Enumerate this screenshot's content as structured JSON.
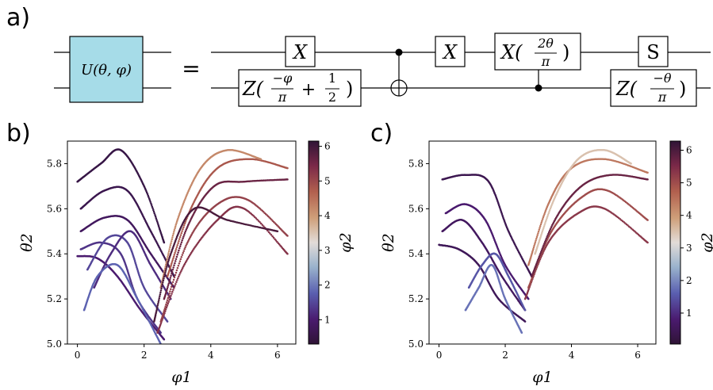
{
  "panels": {
    "a": "a)",
    "b": "b)",
    "c": "c)"
  },
  "circuit": {
    "unitary_label": "U(θ, φ)",
    "equals": "=",
    "unitary_fill": "#a6dce8",
    "gates": {
      "x1": "X",
      "z1_prefix": "Z(",
      "z1_num": "−φ",
      "z1_den": "π",
      "z1_plus": "+",
      "z1_half_num": "1",
      "z1_half_den": "2",
      "z1_suffix": ")",
      "x2": "X",
      "x3_prefix": "X(",
      "x3_num": "2θ",
      "x3_den": "π",
      "x3_suffix": ")",
      "s": "S",
      "z2_prefix": "Z(",
      "z2_num": "−θ",
      "z2_den": "π",
      "z2_suffix": ")"
    }
  },
  "chart_data": [
    {
      "type": "scatter",
      "panel": "b)",
      "xlabel": "φ1",
      "ylabel": "θ2",
      "colorbar_label": "φ2",
      "xlim": [
        -0.3,
        6.55
      ],
      "ylim": [
        5.0,
        5.9
      ],
      "xticks": [
        "0",
        "2",
        "4",
        "6"
      ],
      "yticks": [
        "5.0",
        "5.2",
        "5.4",
        "5.6",
        "5.8"
      ],
      "colorbar_range": [
        0.3,
        6.15
      ],
      "colorbar_ticks": [
        "1",
        "2",
        "3",
        "4",
        "5",
        "6"
      ],
      "colormap": "twilight_shifted",
      "trajectories": [
        {
          "x": [
            0.0,
            0.6,
            1.2,
            1.9,
            2.6
          ],
          "y": [
            5.39,
            5.38,
            5.3,
            5.15,
            5.02
          ],
          "color_value": 1.0
        },
        {
          "x": [
            0.1,
            0.7,
            1.3,
            1.8,
            2.5
          ],
          "y": [
            5.42,
            5.45,
            5.4,
            5.2,
            5.05
          ],
          "color_value": 1.3
        },
        {
          "x": [
            0.3,
            0.9,
            1.5,
            2.0,
            2.7
          ],
          "y": [
            5.33,
            5.47,
            5.45,
            5.25,
            5.1
          ],
          "color_value": 1.5
        },
        {
          "x": [
            0.5,
            1.0,
            1.6,
            2.2,
            2.8
          ],
          "y": [
            5.25,
            5.4,
            5.5,
            5.35,
            5.2
          ],
          "color_value": 1.2
        },
        {
          "x": [
            0.1,
            0.8,
            1.5,
            2.2,
            2.9
          ],
          "y": [
            5.5,
            5.56,
            5.55,
            5.4,
            5.25
          ],
          "color_value": 0.8
        },
        {
          "x": [
            0.1,
            0.8,
            1.5,
            2.2,
            2.9
          ],
          "y": [
            5.6,
            5.68,
            5.68,
            5.5,
            5.3
          ],
          "color_value": 0.6
        },
        {
          "x": [
            0.0,
            0.7,
            1.3,
            2.0,
            2.6
          ],
          "y": [
            5.72,
            5.8,
            5.86,
            5.7,
            5.45
          ],
          "color_value": 0.5
        },
        {
          "x": [
            0.2,
            0.6,
            1.2,
            1.8,
            2.5
          ],
          "y": [
            5.15,
            5.3,
            5.35,
            5.2,
            5.0
          ],
          "color_value": 1.8
        },
        {
          "x": [
            2.4,
            3.2,
            4.2,
            5.0,
            6.3
          ],
          "y": [
            5.05,
            5.35,
            5.55,
            5.6,
            5.4
          ],
          "color_value": 5.3
        },
        {
          "x": [
            2.5,
            3.3,
            4.2,
            5.1,
            6.3
          ],
          "y": [
            5.1,
            5.45,
            5.62,
            5.64,
            5.48
          ],
          "color_value": 5.1
        },
        {
          "x": [
            2.6,
            3.3,
            4.1,
            5.0,
            6.3
          ],
          "y": [
            5.2,
            5.52,
            5.7,
            5.72,
            5.73
          ],
          "color_value": 5.6
        },
        {
          "x": [
            2.7,
            3.4,
            4.2,
            5.2,
            6.3
          ],
          "y": [
            5.3,
            5.6,
            5.78,
            5.82,
            5.78
          ],
          "color_value": 4.8
        },
        {
          "x": [
            2.5,
            3.0,
            3.7,
            4.5,
            5.5
          ],
          "y": [
            5.25,
            5.55,
            5.78,
            5.86,
            5.82
          ],
          "color_value": 4.2
        },
        {
          "x": [
            2.3,
            2.8,
            3.5,
            4.5,
            6.0
          ],
          "y": [
            5.1,
            5.4,
            5.6,
            5.55,
            5.5
          ],
          "color_value": 5.9
        }
      ]
    },
    {
      "type": "scatter",
      "panel": "c)",
      "xlabel": "φ1",
      "ylabel": "θ2",
      "colorbar_label": "φ2",
      "xlim": [
        -0.3,
        6.55
      ],
      "ylim": [
        5.0,
        5.9
      ],
      "xticks": [
        "0",
        "2",
        "4",
        "6"
      ],
      "yticks": [
        "5.0",
        "5.2",
        "5.4",
        "5.6",
        "5.8"
      ],
      "colorbar_range": [
        0.05,
        6.28
      ],
      "colorbar_ticks": [
        "1",
        "2",
        "3",
        "4",
        "5",
        "6"
      ],
      "colormap": "twilight_shifted",
      "trajectories": [
        {
          "x": [
            0.0,
            0.6,
            1.2,
            1.8,
            2.6
          ],
          "y": [
            5.44,
            5.42,
            5.35,
            5.2,
            5.1
          ],
          "color_value": 0.5
        },
        {
          "x": [
            0.1,
            0.7,
            1.3,
            1.9,
            2.6
          ],
          "y": [
            5.5,
            5.55,
            5.45,
            5.3,
            5.15
          ],
          "color_value": 0.6
        },
        {
          "x": [
            0.2,
            0.8,
            1.4,
            2.0,
            2.7
          ],
          "y": [
            5.58,
            5.62,
            5.55,
            5.35,
            5.2
          ],
          "color_value": 0.8
        },
        {
          "x": [
            0.1,
            0.8,
            1.5,
            2.1,
            2.8
          ],
          "y": [
            5.73,
            5.75,
            5.72,
            5.5,
            5.3
          ],
          "color_value": 0.4
        },
        {
          "x": [
            0.9,
            1.3,
            1.7,
            2.1,
            2.6
          ],
          "y": [
            5.25,
            5.35,
            5.4,
            5.3,
            5.15
          ],
          "color_value": 1.5
        },
        {
          "x": [
            0.8,
            1.2,
            1.6,
            2.0,
            2.5
          ],
          "y": [
            5.15,
            5.25,
            5.35,
            5.2,
            5.05
          ],
          "color_value": 1.8
        },
        {
          "x": [
            2.6,
            3.3,
            4.2,
            5.0,
            6.3
          ],
          "y": [
            5.2,
            5.45,
            5.58,
            5.6,
            5.45
          ],
          "color_value": 5.3
        },
        {
          "x": [
            2.7,
            3.4,
            4.3,
            5.1,
            6.3
          ],
          "y": [
            5.25,
            5.5,
            5.65,
            5.68,
            5.55
          ],
          "color_value": 5.0
        },
        {
          "x": [
            2.8,
            3.5,
            4.3,
            5.2,
            6.3
          ],
          "y": [
            5.3,
            5.55,
            5.7,
            5.75,
            5.73
          ],
          "color_value": 5.7
        },
        {
          "x": [
            2.7,
            3.3,
            4.0,
            5.0,
            6.3
          ],
          "y": [
            5.35,
            5.62,
            5.78,
            5.82,
            5.76
          ],
          "color_value": 4.4
        },
        {
          "x": [
            2.9,
            3.5,
            4.2,
            5.0,
            5.8
          ],
          "y": [
            5.4,
            5.65,
            5.82,
            5.86,
            5.8
          ],
          "color_value": 3.5
        }
      ]
    }
  ]
}
